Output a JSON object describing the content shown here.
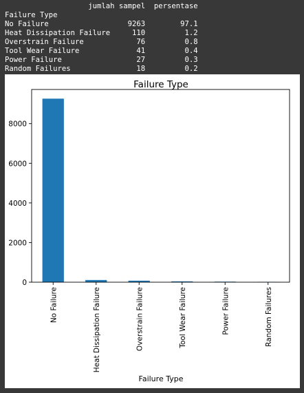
{
  "table": {
    "header": "jumlah sampel",
    "header2": "persentase",
    "index_name": "Failure Type",
    "rows": [
      {
        "label": "No Failure",
        "count": "9263",
        "pct": "97.1"
      },
      {
        "label": "Heat Dissipation Failure",
        "count": "110",
        "pct": "1.2"
      },
      {
        "label": "Overstrain Failure",
        "count": "76",
        "pct": "0.8"
      },
      {
        "label": "Tool Wear Failure",
        "count": "41",
        "pct": "0.4"
      },
      {
        "label": "Power Failure",
        "count": "27",
        "pct": "0.3"
      },
      {
        "label": "Random Failures",
        "count": "18",
        "pct": "0.2"
      }
    ]
  },
  "chart_data": {
    "type": "bar",
    "title": "Failure Type",
    "xlabel": "Failure Type",
    "ylabel": "",
    "categories": [
      "No Failure",
      "Heat Dissipation Failure",
      "Overstrain Failure",
      "Tool Wear Failure",
      "Power Failure",
      "Random Failures"
    ],
    "values": [
      9263,
      110,
      76,
      41,
      27,
      18
    ],
    "ylim": [
      0,
      9726
    ],
    "yticks": [
      0,
      2000,
      4000,
      6000,
      8000
    ],
    "ytick_labels": [
      "0",
      "2000",
      "4000",
      "6000",
      "8000"
    ],
    "bar_color": "#1f77b4",
    "grid": false,
    "legend": "none"
  }
}
